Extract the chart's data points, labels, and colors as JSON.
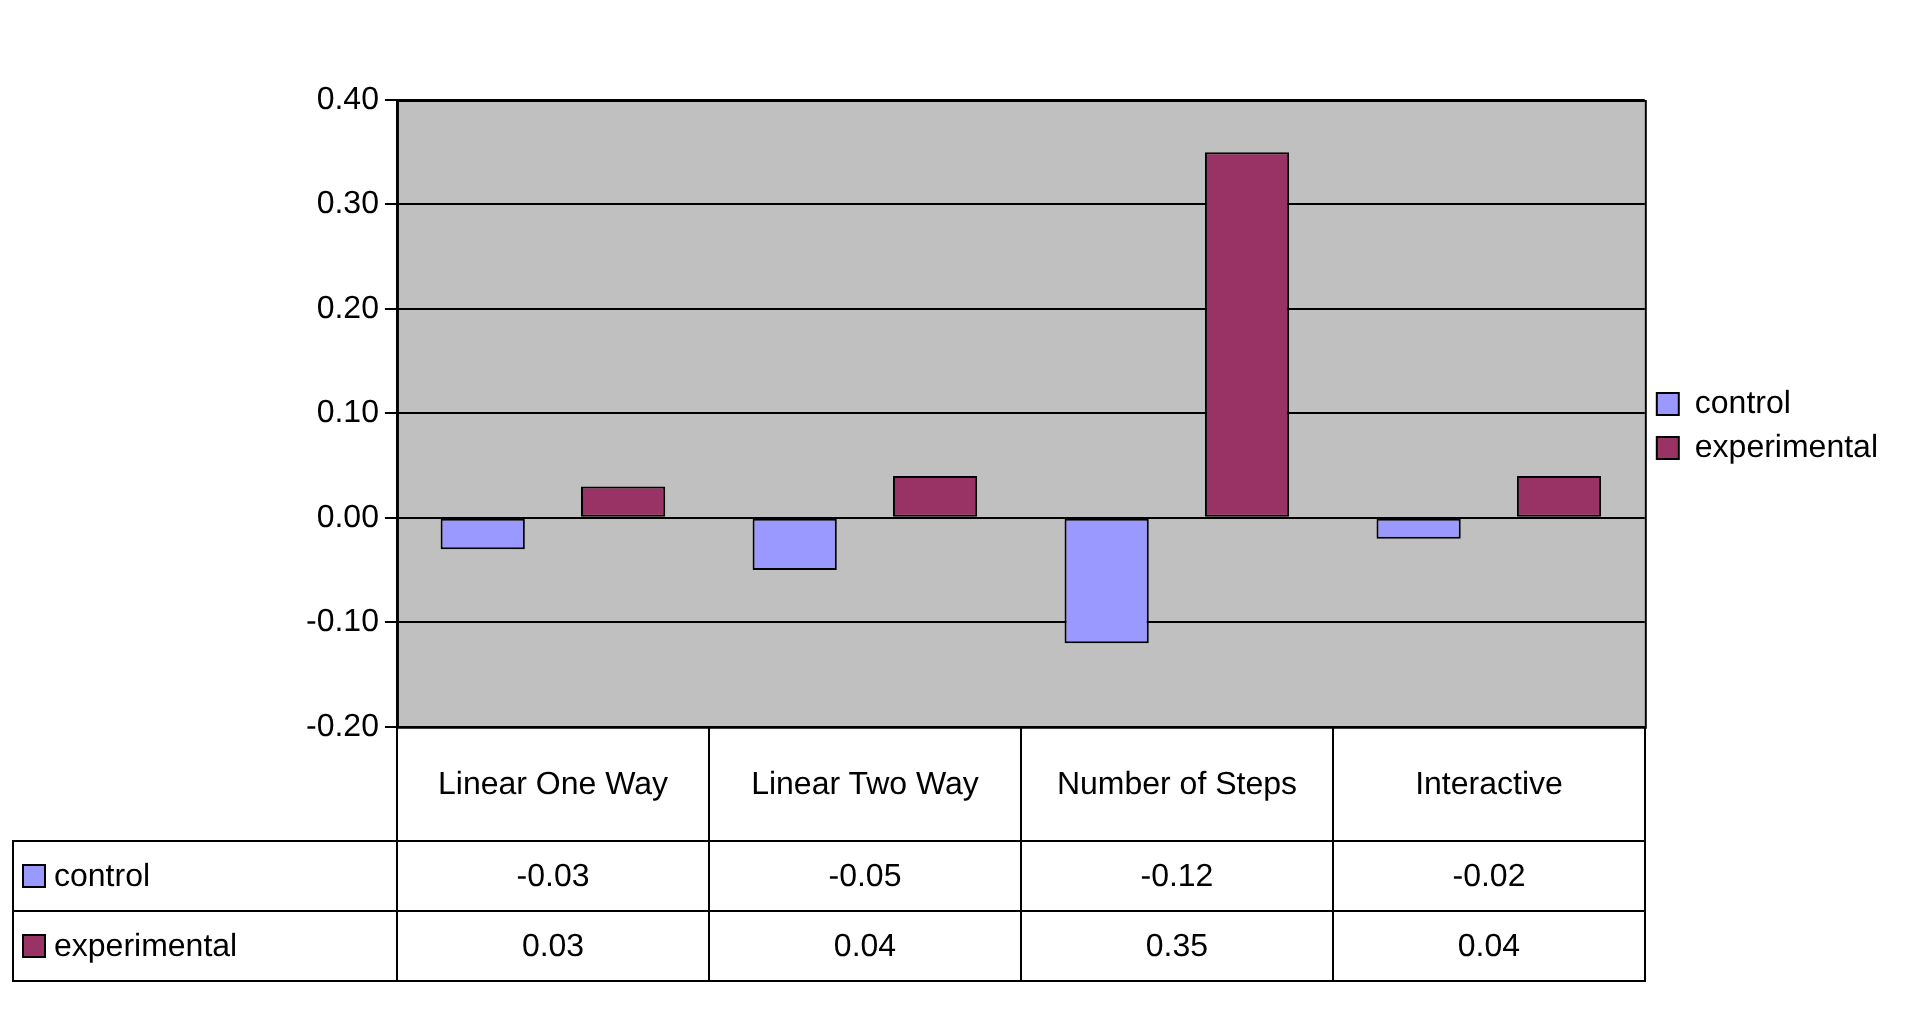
{
  "chart_data": {
    "type": "bar",
    "categories": [
      "Linear One Way",
      "Linear Two Way",
      "Number of Steps",
      "Interactive"
    ],
    "series": [
      {
        "name": "control",
        "color": "#9999ff",
        "values": [
          -0.03,
          -0.05,
          -0.12,
          -0.02
        ]
      },
      {
        "name": "experimental",
        "color": "#993366",
        "values": [
          0.03,
          0.04,
          0.35,
          0.04
        ]
      }
    ],
    "ylim": [
      -0.2,
      0.4
    ],
    "yticks": [
      {
        "value": -0.2,
        "label": "-0.20"
      },
      {
        "value": -0.1,
        "label": "-0.10"
      },
      {
        "value": 0,
        "label": "0.00"
      },
      {
        "value": 0.1,
        "label": "0.10"
      },
      {
        "value": 0.2,
        "label": "0.20"
      },
      {
        "value": 0.3,
        "label": "0.30"
      },
      {
        "value": 0.4,
        "label": "0.40"
      }
    ],
    "grid": "y",
    "legend": "right",
    "data_labels": true
  }
}
